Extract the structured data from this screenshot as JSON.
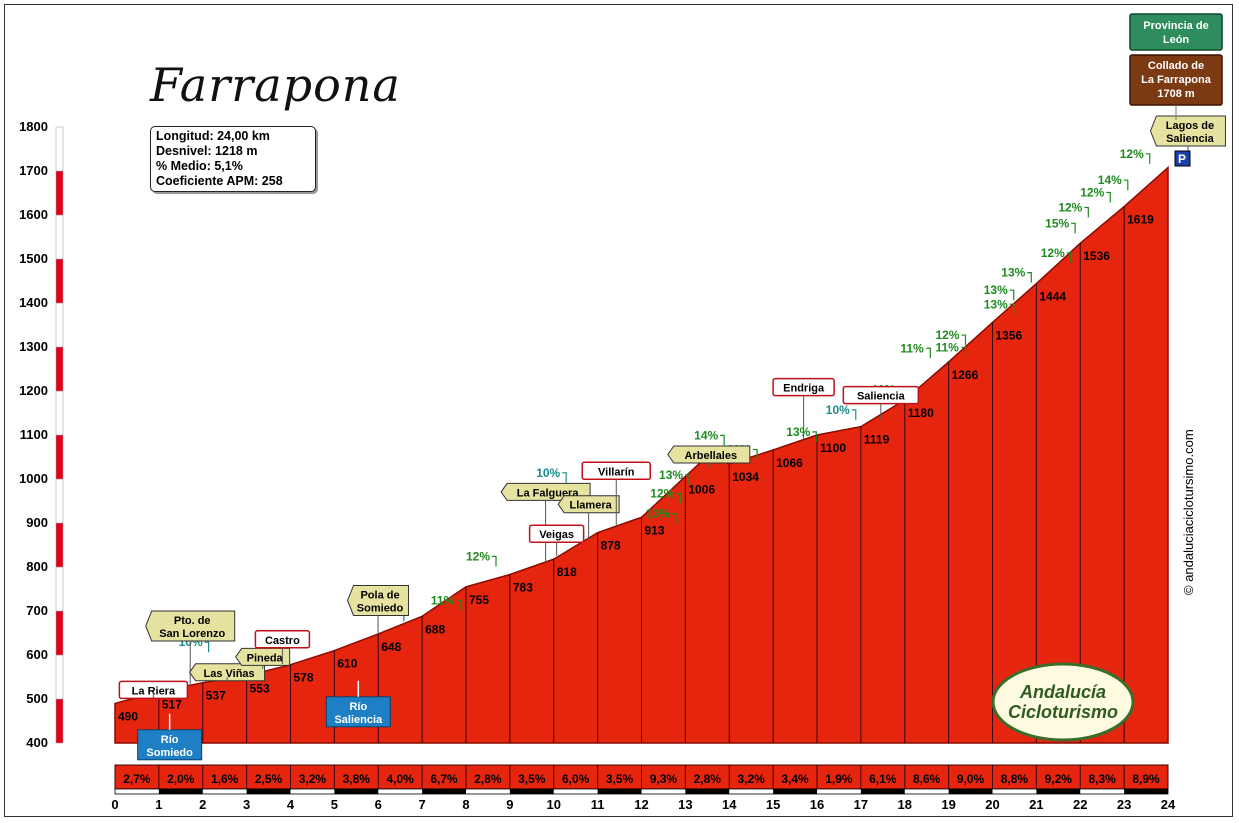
{
  "chart_data": {
    "type": "area",
    "title": "Farrapona",
    "stats": [
      "Longitud: 24,00 km",
      "Desnivel: 1218 m",
      "% Medio: 5,1%",
      "Coeficiente APM: 258"
    ],
    "xlim": [
      0,
      24
    ],
    "ylim": [
      400,
      1800
    ],
    "x_ticks": [
      0,
      1,
      2,
      3,
      4,
      5,
      6,
      7,
      8,
      9,
      10,
      11,
      12,
      13,
      14,
      15,
      16,
      17,
      18,
      19,
      20,
      21,
      22,
      23,
      24
    ],
    "y_ticks": [
      400,
      500,
      600,
      700,
      800,
      900,
      1000,
      1100,
      1200,
      1300,
      1400,
      1500,
      1600,
      1700,
      1800
    ],
    "profile": [
      {
        "x": 0,
        "y": 490
      },
      {
        "x": 1,
        "y": 517
      },
      {
        "x": 2,
        "y": 537
      },
      {
        "x": 3,
        "y": 553
      },
      {
        "x": 4,
        "y": 578
      },
      {
        "x": 5,
        "y": 610
      },
      {
        "x": 6,
        "y": 648
      },
      {
        "x": 7,
        "y": 688
      },
      {
        "x": 8,
        "y": 755
      },
      {
        "x": 9,
        "y": 783
      },
      {
        "x": 10,
        "y": 818
      },
      {
        "x": 11,
        "y": 878
      },
      {
        "x": 12,
        "y": 913
      },
      {
        "x": 13,
        "y": 1006
      },
      {
        "x": 13.5,
        "y": 1052
      },
      {
        "x": 14,
        "y": 1034
      },
      {
        "x": 15,
        "y": 1066
      },
      {
        "x": 16,
        "y": 1100
      },
      {
        "x": 17,
        "y": 1119
      },
      {
        "x": 18,
        "y": 1180
      },
      {
        "x": 19,
        "y": 1266
      },
      {
        "x": 20,
        "y": 1356
      },
      {
        "x": 21,
        "y": 1444
      },
      {
        "x": 22,
        "y": 1536
      },
      {
        "x": 23,
        "y": 1619
      },
      {
        "x": 24,
        "y": 1708
      }
    ],
    "km_markers": [
      {
        "x": 1,
        "label": "490"
      },
      {
        "x": 2,
        "label": "517"
      },
      {
        "x": 3,
        "label": "537"
      },
      {
        "x": 4,
        "label": "553"
      },
      {
        "x": 5,
        "label": "578"
      },
      {
        "x": 6,
        "label": "610"
      },
      {
        "x": 7,
        "label": "648"
      },
      {
        "x": 8,
        "label": "688"
      },
      {
        "x": 9,
        "label": "755"
      },
      {
        "x": 10,
        "label": "783"
      },
      {
        "x": 11,
        "label": "818"
      },
      {
        "x": 12,
        "label": "878"
      },
      {
        "x": 13,
        "label": "913"
      },
      {
        "x": 14,
        "label": "1006"
      },
      {
        "x": 15,
        "label": "1034"
      },
      {
        "x": 16,
        "label": "1066"
      },
      {
        "x": 17,
        "label": "1100"
      },
      {
        "x": 18,
        "label": "1119"
      },
      {
        "x": 19,
        "label": "1180"
      },
      {
        "x": 20,
        "label": "1266"
      },
      {
        "x": 21,
        "label": "1356"
      },
      {
        "x": 22,
        "label": "1444"
      },
      {
        "x": 23,
        "label": "1536"
      },
      {
        "x": 24,
        "label": "1619"
      }
    ],
    "segment_grades": [
      "2,7%",
      "2,0%",
      "1,6%",
      "2,5%",
      "3,2%",
      "3,8%",
      "4,0%",
      "6,7%",
      "2,8%",
      "3,5%",
      "6,0%",
      "3,5%",
      "9,3%",
      "2,8%",
      "3,2%",
      "3,4%",
      "1,9%",
      "6,1%",
      "8,6%",
      "9,0%",
      "8,8%",
      "9,2%",
      "8,3%",
      "8,9%"
    ],
    "ramp_labels": [
      {
        "x": 1.45,
        "y": 620,
        "text": "10%",
        "color": "#1a8c8c"
      },
      {
        "x": 5.9,
        "y": 690,
        "text": "10%",
        "color": "#1a8c8c"
      },
      {
        "x": 7.2,
        "y": 715,
        "text": "11%",
        "color": "#1f8a1f"
      },
      {
        "x": 8.0,
        "y": 815,
        "text": "12%",
        "color": "#1f8a1f"
      },
      {
        "x": 9.6,
        "y": 1005,
        "text": "10%",
        "color": "#1a8c8c"
      },
      {
        "x": 12.1,
        "y": 912,
        "text": "13%",
        "color": "#1f8a1f"
      },
      {
        "x": 12.2,
        "y": 958,
        "text": "12%",
        "color": "#1f8a1f"
      },
      {
        "x": 12.4,
        "y": 1000,
        "text": "13%",
        "color": "#1f8a1f"
      },
      {
        "x": 13.2,
        "y": 1090,
        "text": "14%",
        "color": "#1f8a1f"
      },
      {
        "x": 13.95,
        "y": 1058,
        "text": "11%",
        "color": "#1f8a1f"
      },
      {
        "x": 15.3,
        "y": 1098,
        "text": "13%",
        "color": "#1f8a1f"
      },
      {
        "x": 16.2,
        "y": 1148,
        "text": "10%",
        "color": "#1a8c8c"
      },
      {
        "x": 17.25,
        "y": 1194,
        "text": "11%",
        "color": "#1f8a1f"
      },
      {
        "x": 17.9,
        "y": 1288,
        "text": "11%",
        "color": "#1f8a1f"
      },
      {
        "x": 18.7,
        "y": 1318,
        "text": "12%",
        "color": "#1f8a1f"
      },
      {
        "x": 18.7,
        "y": 1290,
        "text": "11%",
        "color": "#1f8a1f"
      },
      {
        "x": 19.8,
        "y": 1420,
        "text": "13%",
        "color": "#1f8a1f"
      },
      {
        "x": 19.8,
        "y": 1388,
        "text": "13%",
        "color": "#1f8a1f"
      },
      {
        "x": 20.2,
        "y": 1460,
        "text": "13%",
        "color": "#1f8a1f"
      },
      {
        "x": 21.1,
        "y": 1505,
        "text": "12%",
        "color": "#1f8a1f"
      },
      {
        "x": 21.2,
        "y": 1572,
        "text": "15%",
        "color": "#1f8a1f"
      },
      {
        "x": 21.5,
        "y": 1608,
        "text": "12%",
        "color": "#1f8a1f"
      },
      {
        "x": 22.0,
        "y": 1642,
        "text": "12%",
        "color": "#1f8a1f"
      },
      {
        "x": 22.4,
        "y": 1670,
        "text": "14%",
        "color": "#1f8a1f"
      },
      {
        "x": 22.9,
        "y": 1730,
        "text": "12%",
        "color": "#1f8a1f"
      }
    ],
    "places": [
      {
        "x": 0.1,
        "y": 540,
        "text": "La Riera",
        "style": "town"
      },
      {
        "x": 0.7,
        "y": 700,
        "text": "Pto. de|San Lorenzo",
        "style": "sign"
      },
      {
        "x": 1.7,
        "y": 580,
        "text": "Las Viñas",
        "style": "sign"
      },
      {
        "x": 2.75,
        "y": 615,
        "text": "Pineda",
        "style": "sign"
      },
      {
        "x": 3.2,
        "y": 655,
        "text": "Castro",
        "style": "town"
      },
      {
        "x": 5.3,
        "y": 758,
        "text": "Pola de|Somiedo",
        "style": "sign"
      },
      {
        "x": 8.8,
        "y": 990,
        "text": "La Falguera",
        "style": "sign"
      },
      {
        "x": 9.45,
        "y": 895,
        "text": "Veigas",
        "style": "town"
      },
      {
        "x": 10.1,
        "y": 962,
        "text": "Llamera",
        "style": "sign"
      },
      {
        "x": 10.65,
        "y": 1038,
        "text": "Villarín",
        "style": "town"
      },
      {
        "x": 12.6,
        "y": 1075,
        "text": "Arbellales",
        "style": "sign"
      },
      {
        "x": 15.0,
        "y": 1228,
        "text": "Endriga",
        "style": "town"
      },
      {
        "x": 16.6,
        "y": 1210,
        "text": "Saliencia",
        "style": "town"
      },
      {
        "x": 23.6,
        "y": 1825,
        "text": "Lagos de|Saliencia",
        "style": "sign"
      }
    ],
    "rivers": [
      {
        "x": 1.2,
        "y": 430,
        "text": "Río|Somiedo"
      },
      {
        "x": 5.5,
        "y": 505,
        "text": "Río|Saliencia"
      }
    ],
    "summit": {
      "province": "Provincia de|León",
      "name": "Collado de|La Farrapona|1708 m"
    },
    "credit": "© andaluciaciclotursimo.com",
    "logo": "Andalucía|Cicloturismo",
    "colors": {
      "fill": "#e6250e",
      "stroke": "#8a0c00",
      "green": "#1f8a1f",
      "teal": "#1a8c8c"
    }
  }
}
